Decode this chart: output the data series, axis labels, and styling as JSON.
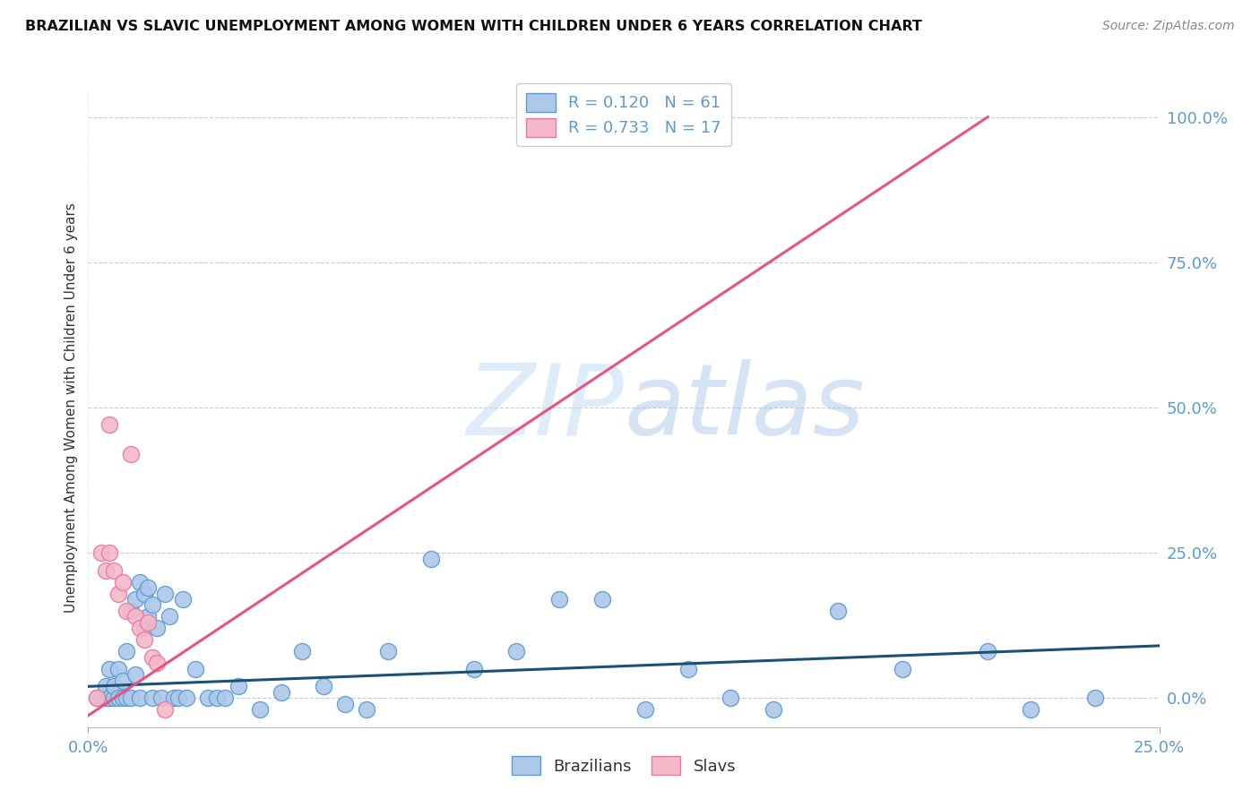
{
  "title": "BRAZILIAN VS SLAVIC UNEMPLOYMENT AMONG WOMEN WITH CHILDREN UNDER 6 YEARS CORRELATION CHART",
  "source": "Source: ZipAtlas.com",
  "ylabel": "Unemployment Among Women with Children Under 6 years",
  "xlim": [
    0.0,
    0.25
  ],
  "ylim": [
    -0.05,
    1.05
  ],
  "watermark_zip": "ZIP",
  "watermark_atlas": "atlas",
  "blue_color": "#5b9bd5",
  "pink_color": "#e879a0",
  "line_blue": "#1a5276",
  "line_pink": "#e75480",
  "scatter_blue_face": "#adc8e8",
  "scatter_pink_face": "#f4b8c8",
  "title_color": "#111111",
  "axis_label_color": "#5b9bd5",
  "grid_color": "#cccccc",
  "brazil_x": [
    0.002,
    0.003,
    0.004,
    0.004,
    0.005,
    0.005,
    0.005,
    0.006,
    0.006,
    0.007,
    0.007,
    0.008,
    0.008,
    0.009,
    0.009,
    0.01,
    0.01,
    0.011,
    0.011,
    0.012,
    0.012,
    0.013,
    0.013,
    0.014,
    0.014,
    0.015,
    0.015,
    0.016,
    0.017,
    0.018,
    0.019,
    0.02,
    0.021,
    0.022,
    0.023,
    0.025,
    0.028,
    0.03,
    0.032,
    0.035,
    0.04,
    0.045,
    0.05,
    0.055,
    0.06,
    0.065,
    0.07,
    0.08,
    0.09,
    0.1,
    0.11,
    0.12,
    0.13,
    0.14,
    0.15,
    0.16,
    0.175,
    0.19,
    0.21,
    0.22,
    0.235
  ],
  "brazil_y": [
    0.0,
    0.0,
    0.0,
    0.02,
    0.0,
    0.0,
    0.05,
    0.0,
    0.02,
    0.0,
    0.05,
    0.0,
    0.03,
    0.0,
    0.08,
    0.0,
    0.15,
    0.04,
    0.17,
    0.0,
    0.2,
    0.12,
    0.18,
    0.14,
    0.19,
    0.0,
    0.16,
    0.12,
    0.0,
    0.18,
    0.14,
    0.0,
    0.0,
    0.17,
    0.0,
    0.05,
    0.0,
    0.0,
    0.0,
    0.02,
    -0.02,
    0.01,
    0.08,
    0.02,
    -0.01,
    -0.02,
    0.08,
    0.24,
    0.05,
    0.08,
    0.17,
    0.17,
    -0.02,
    0.05,
    0.0,
    -0.02,
    0.15,
    0.05,
    0.08,
    -0.02,
    0.0
  ],
  "slav_x": [
    0.002,
    0.003,
    0.004,
    0.005,
    0.005,
    0.006,
    0.007,
    0.008,
    0.009,
    0.01,
    0.011,
    0.012,
    0.013,
    0.014,
    0.015,
    0.016,
    0.018
  ],
  "slav_y": [
    0.0,
    0.25,
    0.22,
    0.47,
    0.25,
    0.22,
    0.18,
    0.2,
    0.15,
    0.42,
    0.14,
    0.12,
    0.1,
    0.13,
    0.07,
    0.06,
    -0.02
  ],
  "brazil_line_x": [
    0.0,
    0.25
  ],
  "brazil_line_y": [
    0.02,
    0.09
  ],
  "slav_line_x": [
    0.0,
    0.21
  ],
  "slav_line_y": [
    -0.03,
    1.0
  ]
}
